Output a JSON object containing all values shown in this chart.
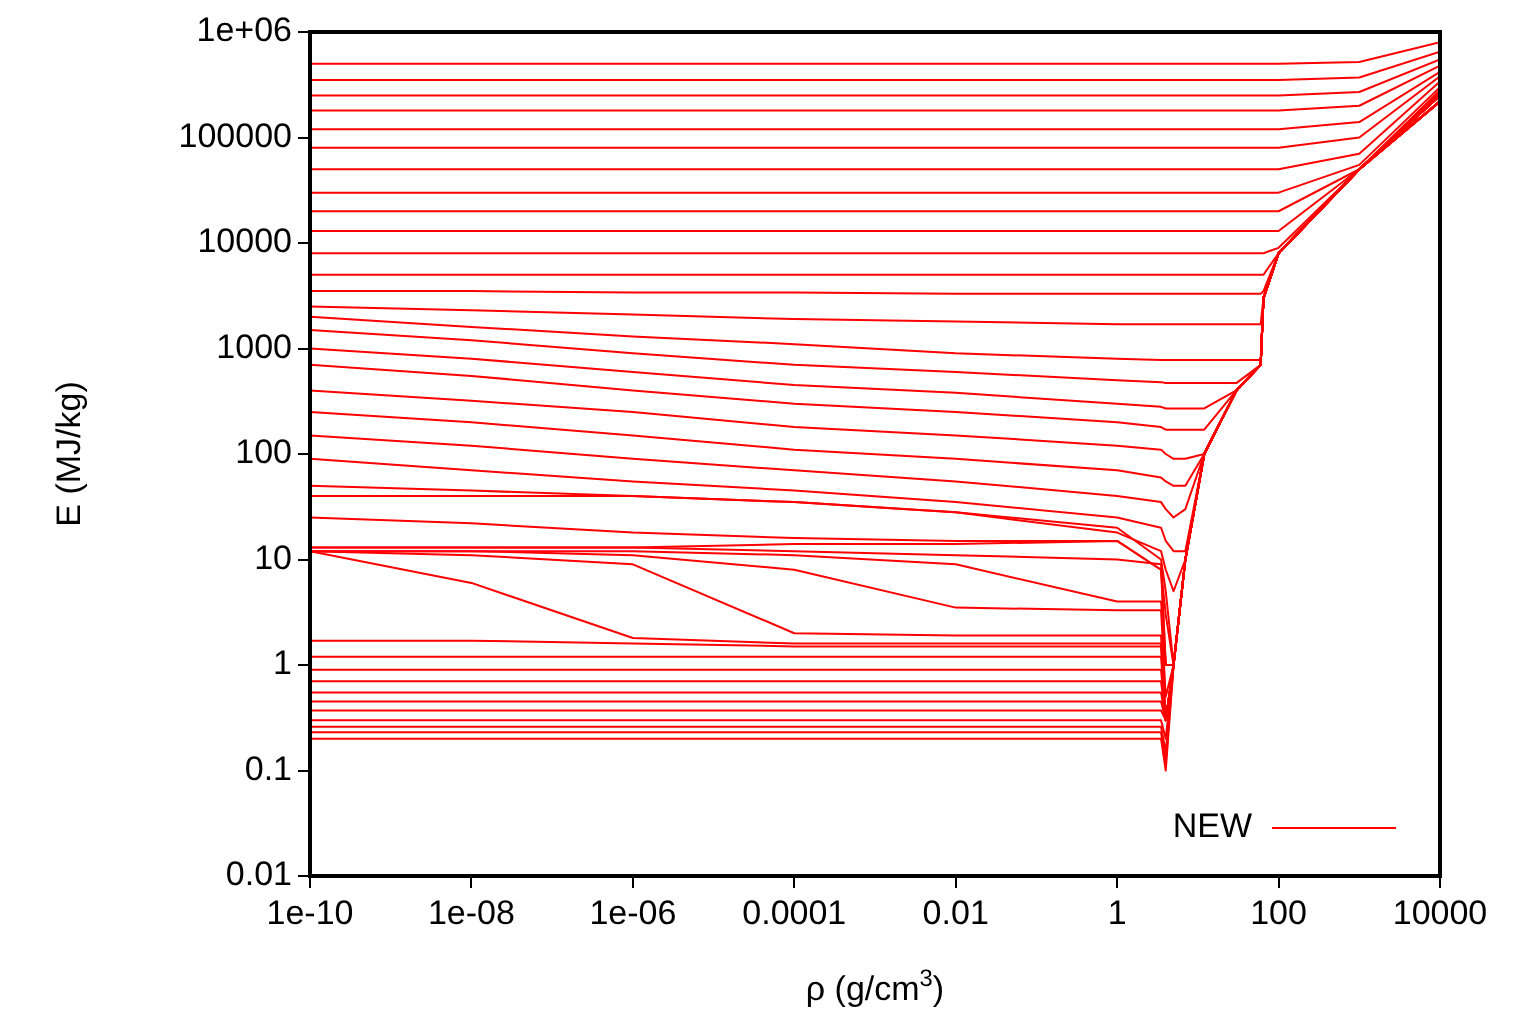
{
  "chart_data": {
    "type": "line",
    "xlabel": "ρ (g/cm$^{3}$)",
    "ylabel": "E (MJ/kg)",
    "log": "xy",
    "legend": "bottom right",
    "grid": false,
    "marker": "none",
    "line_style": "solid",
    "xlim": [
      1e-10,
      10000
    ],
    "ylim": [
      0.01,
      1000000
    ],
    "xticks": [
      {
        "value": 1e-10,
        "label": "1e-10"
      },
      {
        "value": 1e-08,
        "label": "1e-08"
      },
      {
        "value": 1e-06,
        "label": "1e-06"
      },
      {
        "value": 0.0001,
        "label": "0.0001"
      },
      {
        "value": 0.01,
        "label": "0.01"
      },
      {
        "value": 1,
        "label": "1"
      },
      {
        "value": 100,
        "label": "100"
      },
      {
        "value": 10000,
        "label": "10000"
      }
    ],
    "yticks": [
      {
        "value": 0.01,
        "label": "0.01"
      },
      {
        "value": 0.1,
        "label": "0.1"
      },
      {
        "value": 1,
        "label": "1"
      },
      {
        "value": 10,
        "label": "10"
      },
      {
        "value": 100,
        "label": "100"
      },
      {
        "value": 1000,
        "label": "1000"
      },
      {
        "value": 10000,
        "label": "10000"
      },
      {
        "value": 100000,
        "label": "100000"
      },
      {
        "value": 1000000,
        "label": "1e+06"
      }
    ],
    "x": [
      1e-10,
      1e-08,
      1e-06,
      0.0001,
      0.01,
      1,
      3.5,
      4,
      5,
      7,
      12,
      30,
      60,
      65,
      100,
      1000,
      10000
    ],
    "series": [
      {
        "name": "NEW",
        "color": "#ff0000",
        "values": [
          500000,
          500000,
          500000,
          500000,
          500000,
          500000,
          500000,
          500000,
          500000,
          500000,
          500000,
          500000,
          500000,
          500000,
          500000,
          520000,
          800000
        ]
      },
      {
        "color": "#ff0000",
        "values": [
          350000,
          350000,
          350000,
          350000,
          350000,
          350000,
          350000,
          350000,
          350000,
          350000,
          350000,
          350000,
          350000,
          350000,
          350000,
          370000,
          650000
        ]
      },
      {
        "color": "#ff0000",
        "values": [
          250000,
          250000,
          250000,
          250000,
          250000,
          250000,
          250000,
          250000,
          250000,
          250000,
          250000,
          250000,
          250000,
          250000,
          250000,
          270000,
          550000
        ]
      },
      {
        "color": "#ff0000",
        "values": [
          180000,
          180000,
          180000,
          180000,
          180000,
          180000,
          180000,
          180000,
          180000,
          180000,
          180000,
          180000,
          180000,
          180000,
          180000,
          200000,
          480000
        ]
      },
      {
        "color": "#ff0000",
        "values": [
          120000,
          120000,
          120000,
          120000,
          120000,
          120000,
          120000,
          120000,
          120000,
          120000,
          120000,
          120000,
          120000,
          120000,
          120000,
          140000,
          420000
        ]
      },
      {
        "color": "#ff0000",
        "values": [
          80000,
          80000,
          80000,
          80000,
          80000,
          80000,
          80000,
          80000,
          80000,
          80000,
          80000,
          80000,
          80000,
          80000,
          80000,
          100000,
          380000
        ]
      },
      {
        "color": "#ff0000",
        "values": [
          50000,
          50000,
          50000,
          50000,
          50000,
          50000,
          50000,
          50000,
          50000,
          50000,
          50000,
          50000,
          50000,
          50000,
          50000,
          70000,
          340000
        ]
      },
      {
        "color": "#ff0000",
        "values": [
          30000,
          30000,
          30000,
          30000,
          30000,
          30000,
          30000,
          30000,
          30000,
          30000,
          30000,
          30000,
          30000,
          30000,
          30000,
          55000,
          300000
        ]
      },
      {
        "color": "#ff0000",
        "values": [
          20000,
          20000,
          20000,
          20000,
          20000,
          20000,
          20000,
          20000,
          20000,
          20000,
          20000,
          20000,
          20000,
          20000,
          20000,
          50000,
          280000
        ]
      },
      {
        "color": "#ff0000",
        "values": [
          13000,
          13000,
          13000,
          13000,
          13000,
          13000,
          13000,
          13000,
          13000,
          13000,
          13000,
          13000,
          13000,
          13000,
          13000,
          50000,
          270000
        ]
      },
      {
        "color": "#ff0000",
        "values": [
          8000,
          8000,
          8000,
          8000,
          8000,
          8000,
          8000,
          8000,
          8000,
          8000,
          8000,
          8000,
          8000,
          8000,
          9000,
          50000,
          260000
        ]
      },
      {
        "color": "#ff0000",
        "values": [
          5000,
          5000,
          5000,
          5000,
          5000,
          5000,
          5000,
          5000,
          5000,
          5000,
          5000,
          5000,
          5000,
          5000,
          8000,
          50000,
          250000
        ]
      },
      {
        "color": "#ff0000",
        "values": [
          3500,
          3500,
          3400,
          3400,
          3300,
          3300,
          3300,
          3300,
          3300,
          3300,
          3300,
          3300,
          3300,
          3500,
          8000,
          50000,
          250000
        ]
      },
      {
        "color": "#ff0000",
        "values": [
          2500,
          2300,
          2100,
          1900,
          1800,
          1700,
          1700,
          1700,
          1700,
          1700,
          1700,
          1700,
          1700,
          3000,
          8000,
          50000,
          250000
        ]
      },
      {
        "color": "#ff0000",
        "values": [
          2000,
          1600,
          1300,
          1100,
          900,
          800,
          780,
          780,
          780,
          780,
          780,
          780,
          780,
          3000,
          8000,
          50000,
          250000
        ]
      },
      {
        "color": "#ff0000",
        "values": [
          1500,
          1200,
          900,
          700,
          600,
          500,
          480,
          470,
          470,
          470,
          470,
          470,
          700,
          3000,
          8000,
          50000,
          250000
        ]
      },
      {
        "color": "#ff0000",
        "values": [
          1000,
          800,
          600,
          450,
          380,
          300,
          280,
          270,
          270,
          270,
          270,
          400,
          700,
          3000,
          8000,
          50000,
          250000
        ]
      },
      {
        "color": "#ff0000",
        "values": [
          700,
          550,
          400,
          300,
          250,
          200,
          180,
          170,
          170,
          170,
          170,
          400,
          700,
          3000,
          8000,
          50000,
          250000
        ]
      },
      {
        "color": "#ff0000",
        "values": [
          400,
          320,
          250,
          180,
          150,
          120,
          110,
          100,
          90,
          90,
          100,
          400,
          700,
          3000,
          8000,
          50000,
          250000
        ]
      },
      {
        "color": "#ff0000",
        "values": [
          250,
          200,
          150,
          110,
          90,
          70,
          60,
          55,
          50,
          50,
          100,
          400,
          700,
          3000,
          8000,
          50000,
          250000
        ]
      },
      {
        "color": "#ff0000",
        "values": [
          150,
          120,
          90,
          70,
          55,
          40,
          35,
          30,
          25,
          30,
          100,
          400,
          700,
          3000,
          8000,
          50000,
          250000
        ]
      },
      {
        "color": "#ff0000",
        "values": [
          90,
          70,
          55,
          45,
          35,
          25,
          20,
          15,
          12,
          12,
          100,
          400,
          700,
          3000,
          8000,
          50000,
          250000
        ]
      },
      {
        "color": "#ff0000",
        "values": [
          50,
          45,
          40,
          35,
          28,
          18,
          12,
          8,
          5,
          10,
          100,
          400,
          700,
          3000,
          8000,
          50000,
          250000
        ]
      },
      {
        "color": "#ff0000",
        "values": [
          40,
          40,
          40,
          35,
          28,
          20,
          10,
          5,
          1,
          10,
          100,
          400,
          700,
          3000,
          8000,
          50000,
          250000
        ]
      },
      {
        "color": "#ff0000",
        "values": [
          25,
          22,
          18,
          16,
          15,
          15,
          8,
          3,
          1,
          10,
          100,
          400,
          700,
          3000,
          8000,
          50000,
          250000
        ]
      },
      {
        "color": "#ff0000",
        "values": [
          13,
          13,
          13,
          14,
          14,
          15,
          8,
          1,
          1,
          10,
          100,
          400,
          700,
          3000,
          8000,
          50000,
          250000
        ]
      },
      {
        "color": "#ff0000",
        "values": [
          13,
          13,
          13,
          12,
          11,
          10,
          9,
          1,
          1,
          10,
          100,
          400,
          700,
          3000,
          8000,
          50000,
          250000
        ]
      },
      {
        "color": "#ff0000",
        "values": [
          12,
          12,
          12,
          11,
          9,
          4,
          4,
          1,
          1,
          10,
          100,
          400,
          700,
          3000,
          8000,
          50000,
          220000
        ]
      },
      {
        "color": "#ff0000",
        "values": [
          12,
          12,
          11,
          8,
          3.5,
          3.3,
          3.3,
          0.5,
          1,
          10,
          100,
          400,
          700,
          3000,
          8000,
          50000,
          220000
        ]
      },
      {
        "color": "#ff0000",
        "values": [
          12,
          11,
          9,
          2,
          1.9,
          1.9,
          1.9,
          0.3,
          1,
          10,
          100,
          400,
          700,
          3000,
          8000,
          50000,
          220000
        ]
      },
      {
        "color": "#ff0000",
        "values": [
          12,
          6,
          1.8,
          1.6,
          1.6,
          1.6,
          1.6,
          0.3,
          1,
          10,
          100,
          400,
          700,
          3000,
          8000,
          50000,
          220000
        ]
      },
      {
        "color": "#ff0000",
        "values": [
          1.7,
          1.7,
          1.6,
          1.5,
          1.5,
          1.5,
          1.5,
          0.3,
          1,
          10,
          100,
          400,
          700,
          3000,
          8000,
          50000,
          220000
        ]
      },
      {
        "color": "#ff0000",
        "values": [
          1.2,
          1.2,
          1.2,
          1.2,
          1.2,
          1.2,
          1.2,
          0.3,
          1,
          10,
          100,
          400,
          700,
          3000,
          8000,
          50000,
          220000
        ]
      },
      {
        "color": "#ff0000",
        "values": [
          0.9,
          0.9,
          0.9,
          0.9,
          0.9,
          0.9,
          0.9,
          0.3,
          1,
          10,
          100,
          400,
          700,
          3000,
          8000,
          50000,
          220000
        ]
      },
      {
        "color": "#ff0000",
        "values": [
          0.7,
          0.7,
          0.7,
          0.7,
          0.7,
          0.7,
          0.7,
          0.3,
          1,
          10,
          100,
          400,
          700,
          3000,
          8000,
          50000,
          220000
        ]
      },
      {
        "color": "#ff0000",
        "values": [
          0.55,
          0.55,
          0.55,
          0.55,
          0.55,
          0.55,
          0.55,
          0.3,
          1,
          10,
          100,
          400,
          700,
          3000,
          8000,
          50000,
          220000
        ]
      },
      {
        "color": "#ff0000",
        "values": [
          0.45,
          0.45,
          0.45,
          0.45,
          0.45,
          0.45,
          0.45,
          0.3,
          1,
          10,
          100,
          400,
          700,
          3000,
          8000,
          50000,
          220000
        ]
      },
      {
        "color": "#ff0000",
        "values": [
          0.37,
          0.37,
          0.37,
          0.37,
          0.37,
          0.37,
          0.37,
          0.3,
          1,
          10,
          100,
          400,
          700,
          3000,
          8000,
          50000,
          220000
        ]
      },
      {
        "color": "#ff0000",
        "values": [
          0.3,
          0.3,
          0.3,
          0.3,
          0.3,
          0.3,
          0.3,
          0.2,
          1,
          10,
          100,
          400,
          700,
          3000,
          8000,
          50000,
          220000
        ]
      },
      {
        "color": "#ff0000",
        "values": [
          0.26,
          0.26,
          0.26,
          0.26,
          0.26,
          0.26,
          0.26,
          0.15,
          1,
          10,
          100,
          400,
          700,
          3000,
          8000,
          50000,
          220000
        ]
      },
      {
        "color": "#ff0000",
        "values": [
          0.23,
          0.23,
          0.23,
          0.23,
          0.23,
          0.23,
          0.23,
          0.12,
          1,
          10,
          100,
          400,
          700,
          3000,
          8000,
          50000,
          220000
        ]
      },
      {
        "color": "#ff0000",
        "values": [
          0.2,
          0.2,
          0.2,
          0.2,
          0.2,
          0.2,
          0.2,
          0.1,
          1,
          10,
          100,
          400,
          700,
          3000,
          8000,
          50000,
          220000
        ]
      }
    ]
  }
}
